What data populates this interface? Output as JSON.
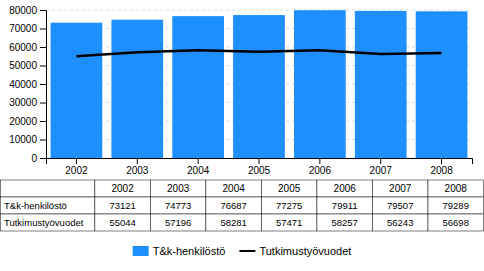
{
  "chart_data": {
    "type": "bar",
    "categories": [
      "2002",
      "2003",
      "2004",
      "2005",
      "2006",
      "2007",
      "2008"
    ],
    "series": [
      {
        "name": "T&k-henkilöstö",
        "type": "bar",
        "color": "#1e8fff",
        "values": [
          73121,
          74773,
          76687,
          77275,
          79911,
          79507,
          79289
        ]
      },
      {
        "name": "Tutkimustyövuodet",
        "type": "line",
        "color": "#000000",
        "values": [
          55044,
          57196,
          58281,
          57471,
          58257,
          56243,
          56698
        ]
      }
    ],
    "ylim": [
      0,
      80000
    ],
    "yticks": [
      0,
      10000,
      20000,
      30000,
      40000,
      50000,
      60000,
      70000,
      80000
    ],
    "grid": true,
    "legend": "bottom"
  }
}
